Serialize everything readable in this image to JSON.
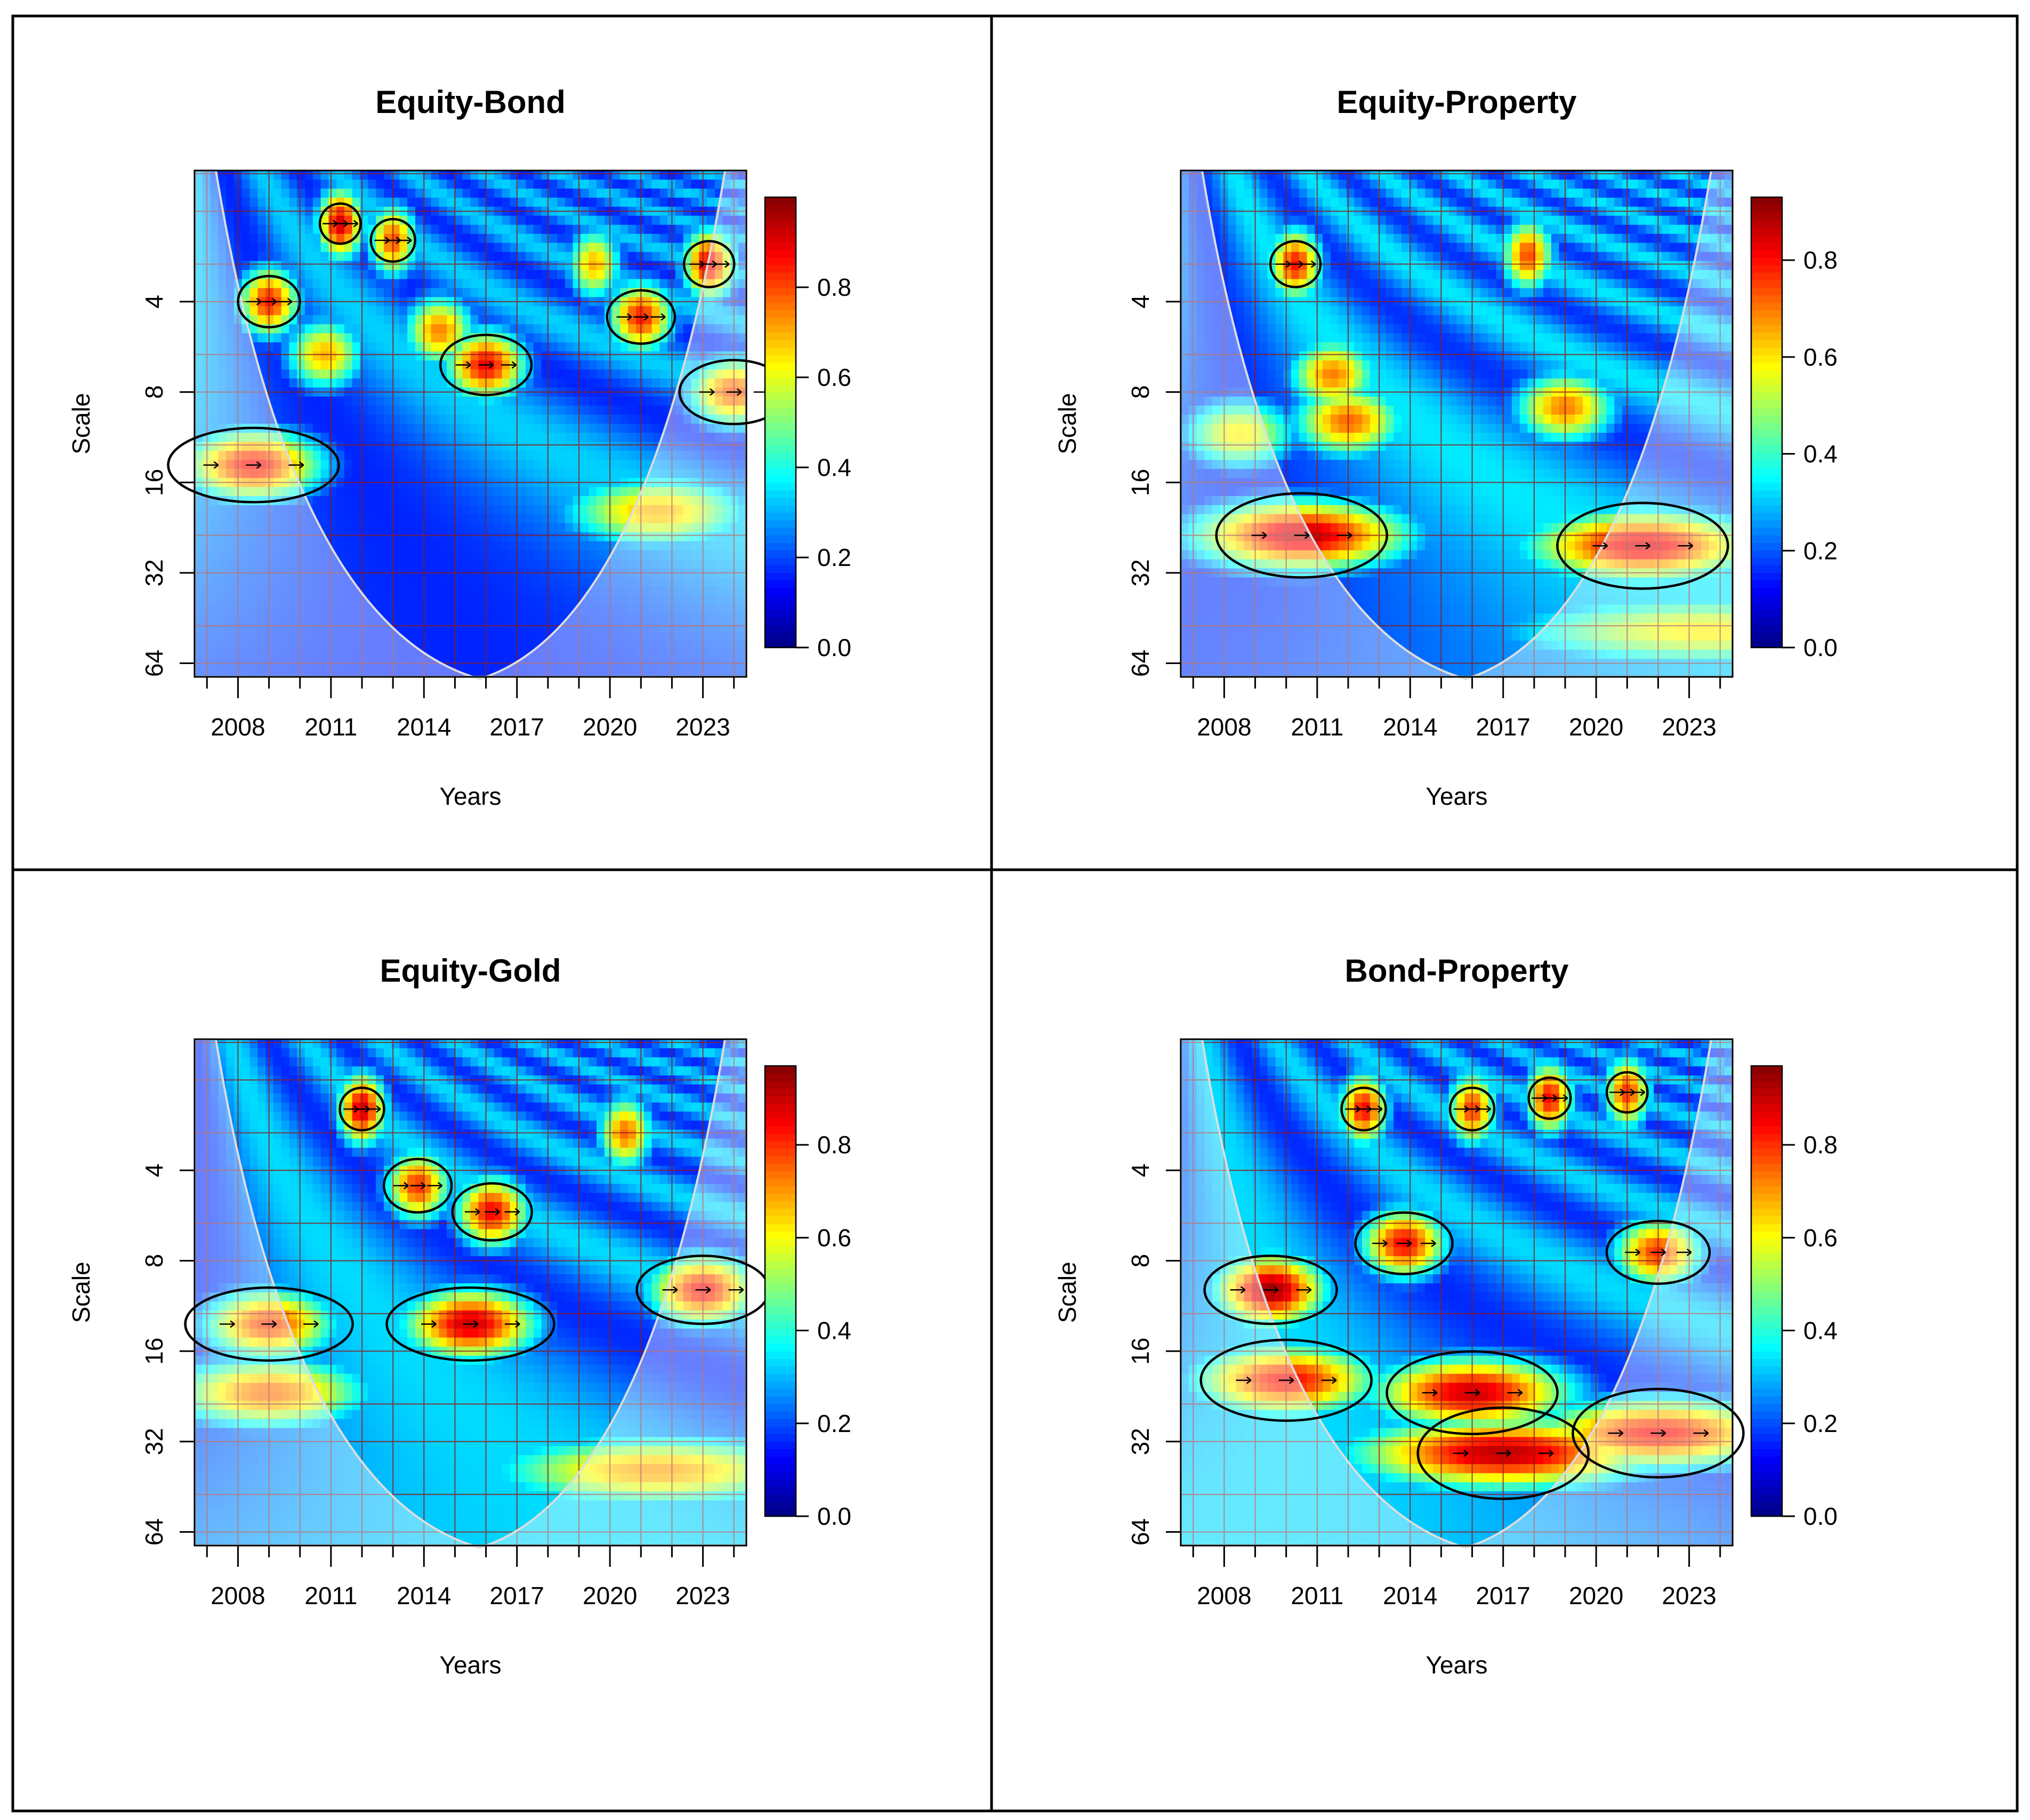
{
  "figure": {
    "layout": "2x2 grid of wavelet coherence plots"
  },
  "colorscale": [
    "#00008b",
    "#0000ff",
    "#0080ff",
    "#00ffff",
    "#80ff80",
    "#ffff00",
    "#ff8000",
    "#ff0000",
    "#8b0000"
  ],
  "chart_data": [
    {
      "type": "heatmap",
      "title": "Equity-Bond",
      "xlabel": "Years",
      "ylabel": "Scale",
      "x_ticks": [
        "2008",
        "2011",
        "2014",
        "2017",
        "2020",
        "2023"
      ],
      "y_ticks": [
        "4",
        "8",
        "16",
        "32",
        "64"
      ],
      "y_scale": "log2",
      "colorbar_ticks": [
        "0.0",
        "0.2",
        "0.4",
        "0.6",
        "0.8"
      ],
      "colorbar_range": [
        0,
        1.0
      ],
      "blobs": [
        {
          "year": 2009,
          "scale": 4,
          "value": 0.85
        },
        {
          "year": 2011.3,
          "scale": 2.2,
          "value": 0.92
        },
        {
          "year": 2010.8,
          "scale": 6,
          "value": 0.7
        },
        {
          "year": 2013,
          "scale": 2.5,
          "value": 0.8
        },
        {
          "year": 2014.5,
          "scale": 5,
          "value": 0.75
        },
        {
          "year": 2016,
          "scale": 6.5,
          "value": 0.88
        },
        {
          "year": 2019.5,
          "scale": 3,
          "value": 0.7
        },
        {
          "year": 2021,
          "scale": 4.5,
          "value": 0.85
        },
        {
          "year": 2023.2,
          "scale": 3,
          "value": 0.9
        },
        {
          "year": 2024,
          "scale": 8,
          "value": 0.8
        },
        {
          "year": 2008.5,
          "scale": 14,
          "value": 0.88
        },
        {
          "year": 2021.5,
          "scale": 20,
          "value": 0.7
        }
      ]
    },
    {
      "type": "heatmap",
      "title": "Equity-Property",
      "xlabel": "Years",
      "ylabel": "Scale",
      "x_ticks": [
        "2008",
        "2011",
        "2014",
        "2017",
        "2020",
        "2023"
      ],
      "y_ticks": [
        "4",
        "8",
        "16",
        "32",
        "64"
      ],
      "y_scale": "log2",
      "colorbar_ticks": [
        "0.0",
        "0.2",
        "0.4",
        "0.6",
        "0.8"
      ],
      "colorbar_range": [
        0,
        0.93
      ],
      "blobs": [
        {
          "year": 2010.3,
          "scale": 3,
          "value": 0.8
        },
        {
          "year": 2017.8,
          "scale": 2.8,
          "value": 0.75
        },
        {
          "year": 2011.5,
          "scale": 7,
          "value": 0.7
        },
        {
          "year": 2012,
          "scale": 10,
          "value": 0.72
        },
        {
          "year": 2019,
          "scale": 9,
          "value": 0.7
        },
        {
          "year": 2008.5,
          "scale": 11,
          "value": 0.6
        },
        {
          "year": 2010.5,
          "scale": 24,
          "value": 0.88
        },
        {
          "year": 2021.5,
          "scale": 26,
          "value": 0.85
        },
        {
          "year": 2023.5,
          "scale": 50,
          "value": 0.6
        }
      ]
    },
    {
      "type": "heatmap",
      "title": "Equity-Gold",
      "xlabel": "Years",
      "ylabel": "Scale",
      "x_ticks": [
        "2008",
        "2011",
        "2014",
        "2017",
        "2020",
        "2023"
      ],
      "y_ticks": [
        "4",
        "8",
        "16",
        "32",
        "64"
      ],
      "y_scale": "log2",
      "colorbar_ticks": [
        "0.0",
        "0.2",
        "0.4",
        "0.6",
        "0.8"
      ],
      "colorbar_range": [
        0,
        0.97
      ],
      "blobs": [
        {
          "year": 2012,
          "scale": 2.5,
          "value": 0.9
        },
        {
          "year": 2013.8,
          "scale": 4.5,
          "value": 0.8
        },
        {
          "year": 2016.2,
          "scale": 5.5,
          "value": 0.85
        },
        {
          "year": 2020.5,
          "scale": 3,
          "value": 0.75
        },
        {
          "year": 2015.5,
          "scale": 13,
          "value": 0.9
        },
        {
          "year": 2023,
          "scale": 10,
          "value": 0.85
        },
        {
          "year": 2009,
          "scale": 13,
          "value": 0.8
        },
        {
          "year": 2009,
          "scale": 22,
          "value": 0.75
        },
        {
          "year": 2021.5,
          "scale": 40,
          "value": 0.7
        }
      ]
    },
    {
      "type": "heatmap",
      "title": "Bond-Property",
      "xlabel": "Years",
      "ylabel": "Scale",
      "x_ticks": [
        "2008",
        "2011",
        "2014",
        "2017",
        "2020",
        "2023"
      ],
      "y_ticks": [
        "4",
        "8",
        "16",
        "32",
        "64"
      ],
      "y_scale": "log2",
      "colorbar_ticks": [
        "0.0",
        "0.2",
        "0.4",
        "0.6",
        "0.8"
      ],
      "colorbar_range": [
        0,
        0.97
      ],
      "blobs": [
        {
          "year": 2012.5,
          "scale": 2.5,
          "value": 0.85
        },
        {
          "year": 2016,
          "scale": 2.5,
          "value": 0.8
        },
        {
          "year": 2018.5,
          "scale": 2.3,
          "value": 0.85
        },
        {
          "year": 2021,
          "scale": 2.2,
          "value": 0.8
        },
        {
          "year": 2013.8,
          "scale": 7,
          "value": 0.85
        },
        {
          "year": 2022,
          "scale": 7.5,
          "value": 0.8
        },
        {
          "year": 2009.5,
          "scale": 10,
          "value": 0.95
        },
        {
          "year": 2010,
          "scale": 20,
          "value": 0.85
        },
        {
          "year": 2016,
          "scale": 22,
          "value": 0.9
        },
        {
          "year": 2017,
          "scale": 35,
          "value": 0.92
        },
        {
          "year": 2022,
          "scale": 30,
          "value": 0.85
        }
      ]
    }
  ]
}
